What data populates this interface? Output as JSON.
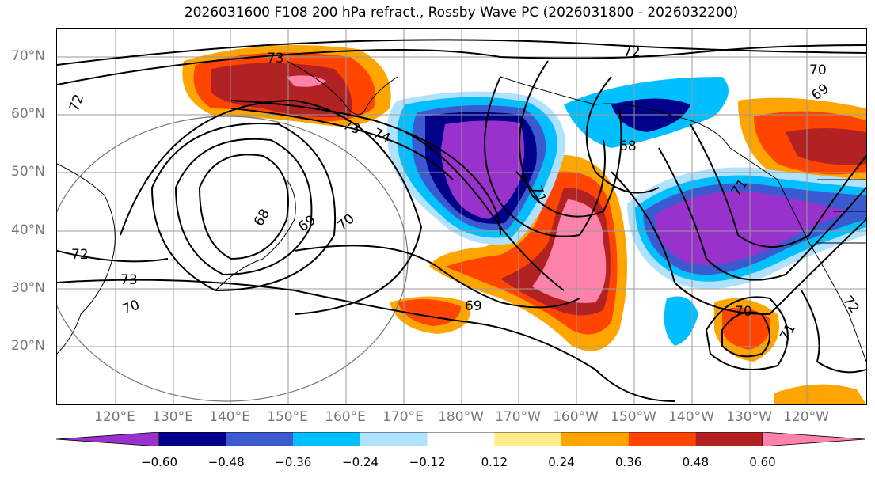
{
  "title": "2026031600 F108 200 hPa refract., Rossby Wave PC (2026031800 - 2026032200)",
  "lat_labels": [
    "70°N",
    "60°N",
    "50°N",
    "40°N",
    "30°N",
    "20°N"
  ],
  "lon_labels": [
    "120°E",
    "130°E",
    "140°E",
    "150°E",
    "160°E",
    "170°E",
    "180°W",
    "170°W",
    "160°W",
    "150°W",
    "140°W",
    "130°W",
    "120°W"
  ],
  "contour_labels": [
    "73",
    "72",
    "72",
    "74",
    "73",
    "69",
    "68",
    "71",
    "70",
    "69",
    "68",
    "72",
    "73",
    "70",
    "69",
    "70",
    "71",
    "72",
    "70",
    "71"
  ],
  "colorbar": {
    "ticks": [
      "−0.60",
      "−0.48",
      "−0.36",
      "−0.24",
      "−0.12",
      "0.12",
      "0.24",
      "0.36",
      "0.48",
      "0.60"
    ],
    "colors": [
      "#9932cc",
      "#00008b",
      "#3a5bcf",
      "#00bfff",
      "#b0e2ff",
      "#ffffff",
      "#ffec8b",
      "#ffa500",
      "#ff4500",
      "#b22222",
      "#ff82ab"
    ]
  }
}
